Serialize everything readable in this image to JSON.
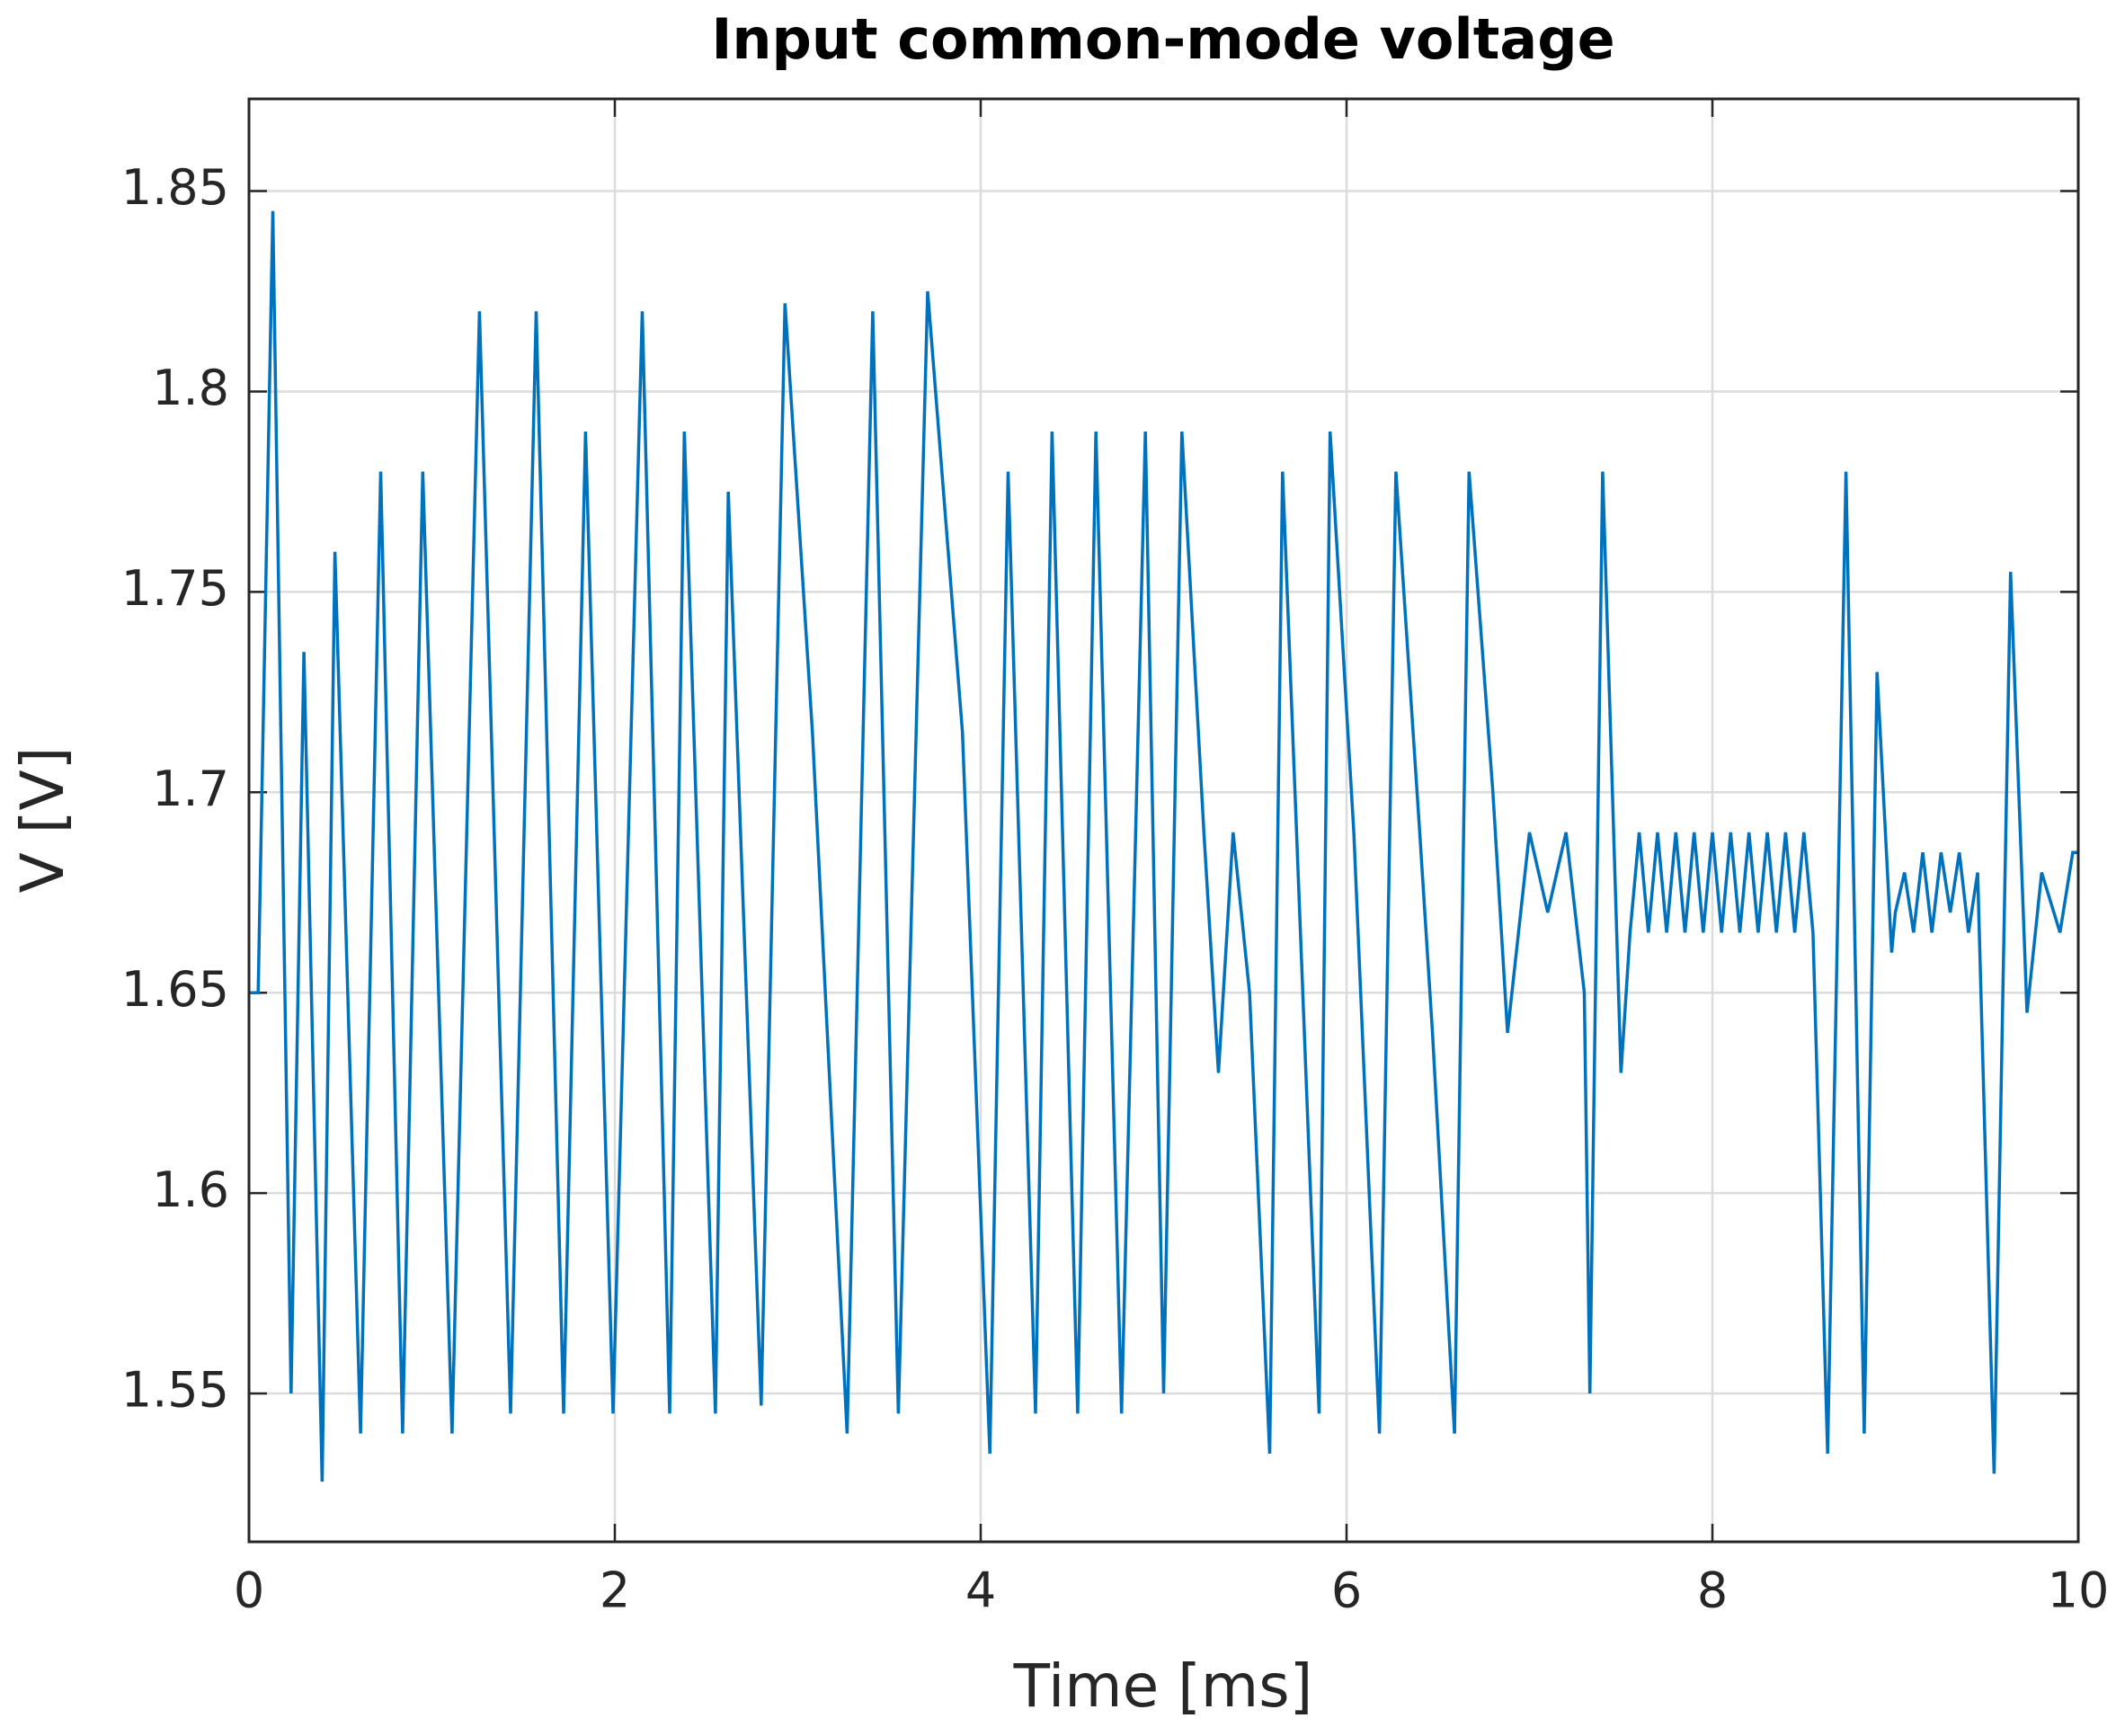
{
  "chart_data": {
    "type": "line",
    "title": "Input common-mode voltage",
    "x_label": "Time [ms]",
    "y_label": "V [V]",
    "x": [
      0,
      0.05,
      0.13,
      0.23,
      0.3,
      0.4,
      0.47,
      0.61,
      0.72,
      0.84,
      0.95,
      1.11,
      1.26,
      1.43,
      1.57,
      1.72,
      1.84,
      1.99,
      2.15,
      2.3,
      2.38,
      2.55,
      2.62,
      2.8,
      2.93,
      3.08,
      3.27,
      3.41,
      3.55,
      3.71,
      3.9,
      4.05,
      4.15,
      4.3,
      4.39,
      4.53,
      4.63,
      4.77,
      4.9,
      5.0,
      5.1,
      5.22,
      5.3,
      5.38,
      5.47,
      5.58,
      5.65,
      5.85,
      5.91,
      6.04,
      6.18,
      6.27,
      6.4,
      6.47,
      6.59,
      6.67,
      6.8,
      6.88,
      7.0,
      7.1,
      7.2,
      7.3,
      7.33,
      7.4,
      7.5,
      7.55,
      7.6,
      7.65,
      7.7,
      7.75,
      7.8,
      7.85,
      7.9,
      7.95,
      8.0,
      8.05,
      8.1,
      8.15,
      8.2,
      8.25,
      8.3,
      8.35,
      8.4,
      8.45,
      8.5,
      8.55,
      8.63,
      8.73,
      8.83,
      8.9,
      8.98,
      9.0,
      9.05,
      9.1,
      9.15,
      9.2,
      9.25,
      9.3,
      9.35,
      9.4,
      9.45,
      9.54,
      9.63,
      9.72,
      9.8,
      9.9,
      9.97,
      10
    ],
    "series": [
      {
        "color": "#0072bd",
        "values": [
          1.65,
          1.65,
          1.845,
          1.55,
          1.735,
          1.528,
          1.76,
          1.54,
          1.78,
          1.54,
          1.78,
          1.54,
          1.82,
          1.545,
          1.82,
          1.545,
          1.79,
          1.545,
          1.82,
          1.545,
          1.79,
          1.545,
          1.775,
          1.547,
          1.822,
          1.715,
          1.54,
          1.82,
          1.545,
          1.825,
          1.715,
          1.535,
          1.78,
          1.545,
          1.79,
          1.545,
          1.79,
          1.545,
          1.79,
          1.55,
          1.79,
          1.69,
          1.63,
          1.69,
          1.65,
          1.535,
          1.78,
          1.545,
          1.79,
          1.69,
          1.54,
          1.78,
          1.69,
          1.64,
          1.54,
          1.78,
          1.7,
          1.64,
          1.69,
          1.67,
          1.69,
          1.65,
          1.55,
          1.78,
          1.63,
          1.665,
          1.69,
          1.665,
          1.69,
          1.665,
          1.69,
          1.665,
          1.69,
          1.665,
          1.69,
          1.665,
          1.69,
          1.665,
          1.69,
          1.665,
          1.69,
          1.665,
          1.69,
          1.665,
          1.69,
          1.665,
          1.535,
          1.78,
          1.54,
          1.73,
          1.66,
          1.67,
          1.68,
          1.665,
          1.685,
          1.665,
          1.685,
          1.67,
          1.685,
          1.665,
          1.68,
          1.53,
          1.755,
          1.645,
          1.68,
          1.665,
          1.685,
          1.685
        ]
      }
    ],
    "xlim": [
      0,
      10
    ],
    "xticks": [
      0,
      2,
      4,
      6,
      8,
      10
    ],
    "ylim": [
      1.513,
      1.873
    ],
    "yticks": [
      1.55,
      1.6,
      1.65,
      1.7,
      1.75,
      1.8,
      1.85
    ],
    "grid": true
  }
}
